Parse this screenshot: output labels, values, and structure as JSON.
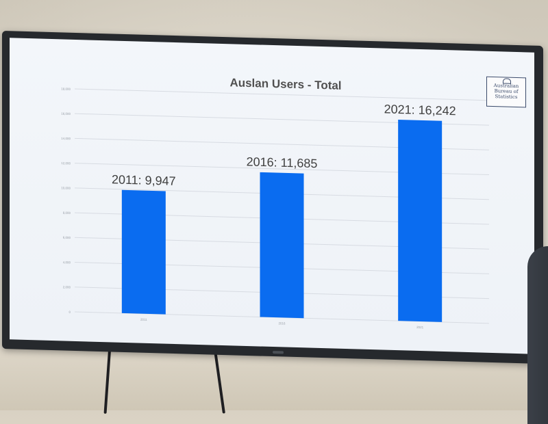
{
  "chart_data": {
    "type": "bar",
    "title": "Auslan Users - Total",
    "categories": [
      "2011",
      "2016",
      "2021"
    ],
    "values": [
      9947,
      11685,
      16242
    ],
    "data_labels": [
      "2011: 9,947",
      "2016: 11,685",
      "2021: 16,242"
    ],
    "ylim": [
      0,
      18000
    ],
    "y_ticks": [
      0,
      2000,
      4000,
      6000,
      8000,
      10000,
      12000,
      14000,
      16000,
      18000
    ],
    "grid": true,
    "bar_color": "#0a6cf0",
    "legend": "none"
  },
  "logo": {
    "lines": [
      "Australian",
      "Bureau of",
      "Statistics"
    ]
  },
  "colors": {
    "bezel": "#26292d",
    "screen": "#f1f4f8",
    "gridline": "#d7dbe2",
    "text": "#404040"
  }
}
